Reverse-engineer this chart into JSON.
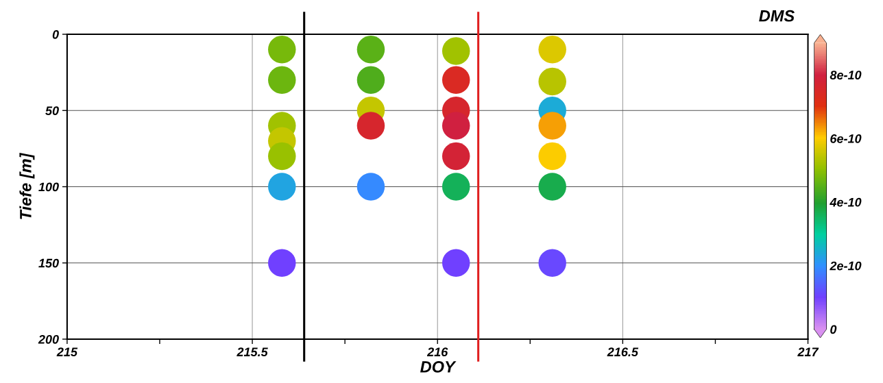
{
  "chart_data": {
    "type": "scatter",
    "xlabel": "DOY",
    "ylabel": "Tiefe [m]",
    "clabel": "DMS",
    "x": [
      215.58,
      215.58,
      215.58,
      215.58,
      215.58,
      215.58,
      215.58,
      215.82,
      215.82,
      215.82,
      215.82,
      215.82,
      216.05,
      216.05,
      216.05,
      216.05,
      216.05,
      216.05,
      216.05,
      216.31,
      216.31,
      216.31,
      216.31,
      216.31,
      216.31,
      216.31
    ],
    "values": [
      10,
      30,
      60,
      70,
      80,
      100,
      150,
      10,
      30,
      50,
      60,
      100,
      11,
      30,
      50,
      60,
      80,
      100,
      150,
      10,
      31,
      50,
      60,
      80,
      100,
      150
    ],
    "cvalues": [
      4.8e-10,
      4.7e-10,
      5.2e-10,
      5.5e-10,
      5.1e-10,
      2.3e-10,
      1e-10,
      4.5e-10,
      4.4e-10,
      5.5e-10,
      7.6e-10,
      1.9e-10,
      5.2e-10,
      7.4e-10,
      7.6e-10,
      8e-10,
      7.8e-10,
      3.6e-10,
      1e-10,
      5.7e-10,
      5.4e-10,
      2.4e-10,
      6.3e-10,
      6e-10,
      3.7e-10,
      1.1e-10
    ],
    "xlim": [
      215,
      217
    ],
    "xticks": [
      215,
      {
        "value": 215.25,
        "label": null
      },
      215.5,
      {
        "value": 215.75,
        "label": null
      },
      216,
      {
        "value": 216.25,
        "label": null
      },
      216.5,
      {
        "value": 216.75,
        "label": null
      },
      217
    ],
    "ylim": [
      200,
      0
    ],
    "yticks": [
      0,
      50,
      100,
      150,
      200
    ],
    "clim": [
      0,
      9e-10
    ],
    "cticks": [
      0,
      {
        "value": 2e-10,
        "label": "2e-10"
      },
      {
        "value": 4e-10,
        "label": "4e-10"
      },
      {
        "value": 6e-10,
        "label": "6e-10"
      },
      {
        "value": 8e-10,
        "label": "8e-10"
      }
    ],
    "grid": true,
    "marker": "circle",
    "ref_lines": [
      {
        "axis": "x",
        "value": 215.64,
        "color": "#000000"
      },
      {
        "axis": "x",
        "value": 216.11,
        "color": "#e02020"
      }
    ]
  }
}
